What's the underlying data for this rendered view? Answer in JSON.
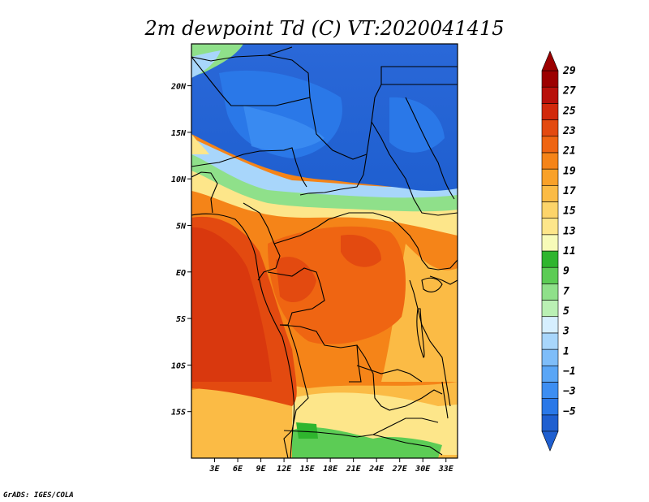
{
  "title": "2m dewpoint Td (C) VT:2020041415",
  "credit": "GrADS: IGES/COLA",
  "map": {
    "lon_range": [
      0,
      34.5
    ],
    "lat_range": [
      -20,
      24.5
    ],
    "lat_ticks": [
      {
        "value": 20,
        "label": "20N"
      },
      {
        "value": 15,
        "label": "15N"
      },
      {
        "value": 10,
        "label": "10N"
      },
      {
        "value": 5,
        "label": "5N"
      },
      {
        "value": 0,
        "label": "EQ"
      },
      {
        "value": -5,
        "label": "5S"
      },
      {
        "value": -10,
        "label": "10S"
      },
      {
        "value": -15,
        "label": "15S"
      }
    ],
    "lon_ticks": [
      {
        "value": 3,
        "label": "3E"
      },
      {
        "value": 6,
        "label": "6E"
      },
      {
        "value": 9,
        "label": "9E"
      },
      {
        "value": 12,
        "label": "12E"
      },
      {
        "value": 15,
        "label": "15E"
      },
      {
        "value": 18,
        "label": "18E"
      },
      {
        "value": 21,
        "label": "21E"
      },
      {
        "value": 24,
        "label": "24E"
      },
      {
        "value": 27,
        "label": "27E"
      },
      {
        "value": 30,
        "label": "30E"
      },
      {
        "value": 33,
        "label": "33E"
      }
    ]
  },
  "colorbar": {
    "colors": [
      "#1f5fd0",
      "#2a78e8",
      "#3d8ef2",
      "#5aa6f6",
      "#7ebdf9",
      "#a8d6fb",
      "#d6efff",
      "#baf0b4",
      "#8fe08a",
      "#5ccc55",
      "#2fb52e",
      "#f7fbb8",
      "#fde68a",
      "#fdd46a",
      "#fbbb45",
      "#f9a128",
      "#f58418",
      "#ef6512",
      "#e34a10",
      "#d2290c",
      "#b8100a",
      "#9c0000"
    ],
    "labels": [
      "29",
      "27",
      "25",
      "23",
      "21",
      "19",
      "17",
      "15",
      "13",
      "11",
      "9",
      "7",
      "5",
      "3",
      "1",
      "−1",
      "−3",
      "−5"
    ]
  },
  "field": {
    "levels": [
      {
        "name": "Td ≤ -5",
        "color": "#1f5fd0"
      },
      {
        "name": "-5..-3",
        "color": "#2a78e8"
      },
      {
        "name": "-3..-1",
        "color": "#3d8ef2"
      },
      {
        "name": "-1..1",
        "color": "#5aa6f6"
      },
      {
        "name": "1..3",
        "color": "#7ebdf9"
      },
      {
        "name": "3..5",
        "color": "#a8d6fb"
      },
      {
        "name": "5..7",
        "color": "#d6efff"
      },
      {
        "name": "7..9",
        "color": "#baf0b4"
      },
      {
        "name": "9..11",
        "color": "#8fe08a"
      },
      {
        "name": "11..13",
        "color": "#5ccc55"
      },
      {
        "name": "13..15",
        "color": "#2fb52e"
      },
      {
        "name": "15..17",
        "color": "#f7fbb8"
      },
      {
        "name": "17..19",
        "color": "#fde68a"
      },
      {
        "name": "19..21",
        "color": "#fbbb45"
      },
      {
        "name": "21..23",
        "color": "#f58418"
      },
      {
        "name": "23..25",
        "color": "#ef6512"
      },
      {
        "name": "25..27",
        "color": "#e34a10"
      },
      {
        "name": "27..29",
        "color": "#d2290c"
      }
    ]
  }
}
